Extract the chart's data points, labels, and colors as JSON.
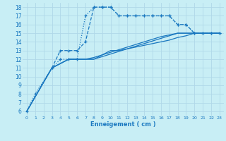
{
  "bg_color": "#c8eef5",
  "grid_color": "#b0d8e8",
  "line_color": "#1a78c0",
  "xlabel": "Enneigement ( cm )",
  "xlim": [
    -0.5,
    23.5
  ],
  "ylim_min": 5.5,
  "ylim_max": 18.5,
  "yticks": [
    6,
    7,
    8,
    9,
    10,
    11,
    12,
    13,
    14,
    15,
    16,
    17,
    18
  ],
  "xticks": [
    0,
    1,
    2,
    3,
    4,
    5,
    6,
    7,
    8,
    9,
    10,
    11,
    12,
    13,
    14,
    15,
    16,
    17,
    18,
    19,
    20,
    21,
    22,
    23
  ],
  "series1_dotted": [
    [
      0,
      6
    ],
    [
      1,
      8
    ],
    [
      3,
      11
    ],
    [
      4,
      12
    ],
    [
      5,
      12
    ],
    [
      6,
      12
    ],
    [
      7,
      17
    ],
    [
      8,
      18
    ],
    [
      9,
      18
    ],
    [
      10,
      18
    ],
    [
      11,
      17
    ],
    [
      12,
      17
    ],
    [
      13,
      17
    ],
    [
      14,
      17
    ],
    [
      15,
      17
    ],
    [
      16,
      17
    ],
    [
      17,
      17
    ],
    [
      18,
      16
    ],
    [
      19,
      16
    ],
    [
      20,
      15
    ],
    [
      21,
      15
    ],
    [
      22,
      15
    ],
    [
      23,
      15
    ]
  ],
  "series2_dashed": [
    [
      3,
      11
    ],
    [
      4,
      13
    ],
    [
      5,
      13
    ],
    [
      6,
      13
    ],
    [
      7,
      14
    ],
    [
      8,
      18
    ],
    [
      9,
      18
    ],
    [
      10,
      18
    ],
    [
      11,
      17
    ],
    [
      12,
      17
    ],
    [
      13,
      17
    ],
    [
      14,
      17
    ],
    [
      15,
      17
    ],
    [
      16,
      17
    ],
    [
      17,
      17
    ],
    [
      18,
      16
    ],
    [
      19,
      16
    ],
    [
      20,
      15
    ],
    [
      21,
      15
    ],
    [
      22,
      15
    ],
    [
      23,
      15
    ]
  ],
  "series3_solid": [
    [
      0,
      6
    ],
    [
      3,
      11
    ],
    [
      5,
      12
    ],
    [
      6,
      12
    ],
    [
      7,
      12
    ],
    [
      8,
      12
    ],
    [
      9,
      12.5
    ],
    [
      10,
      13
    ],
    [
      11,
      13
    ],
    [
      12,
      13.2
    ],
    [
      13,
      13.4
    ],
    [
      14,
      13.6
    ],
    [
      15,
      13.8
    ],
    [
      16,
      14
    ],
    [
      17,
      14.2
    ],
    [
      18,
      14.5
    ],
    [
      19,
      14.7
    ],
    [
      20,
      15
    ],
    [
      21,
      15
    ],
    [
      22,
      15
    ],
    [
      23,
      15
    ]
  ],
  "series4_solid": [
    [
      0,
      6
    ],
    [
      3,
      11
    ],
    [
      5,
      12
    ],
    [
      6,
      12
    ],
    [
      7,
      12
    ],
    [
      8,
      12.2
    ],
    [
      9,
      12.5
    ],
    [
      10,
      12.8
    ],
    [
      11,
      13.1
    ],
    [
      12,
      13.4
    ],
    [
      13,
      13.7
    ],
    [
      14,
      14
    ],
    [
      15,
      14.3
    ],
    [
      16,
      14.6
    ],
    [
      17,
      14.8
    ],
    [
      18,
      15
    ],
    [
      19,
      15
    ],
    [
      20,
      15
    ],
    [
      21,
      15
    ],
    [
      22,
      15
    ],
    [
      23,
      15
    ]
  ],
  "series5_solid": [
    [
      0,
      6
    ],
    [
      3,
      11
    ],
    [
      5,
      12
    ],
    [
      6,
      12
    ],
    [
      7,
      12
    ],
    [
      8,
      12
    ],
    [
      9,
      12.3
    ],
    [
      10,
      12.6
    ],
    [
      11,
      12.9
    ],
    [
      12,
      13.2
    ],
    [
      13,
      13.5
    ],
    [
      14,
      13.8
    ],
    [
      15,
      14.1
    ],
    [
      16,
      14.4
    ],
    [
      17,
      14.7
    ],
    [
      18,
      15
    ],
    [
      19,
      15
    ],
    [
      20,
      15
    ],
    [
      21,
      15
    ],
    [
      22,
      15
    ],
    [
      23,
      15
    ]
  ]
}
